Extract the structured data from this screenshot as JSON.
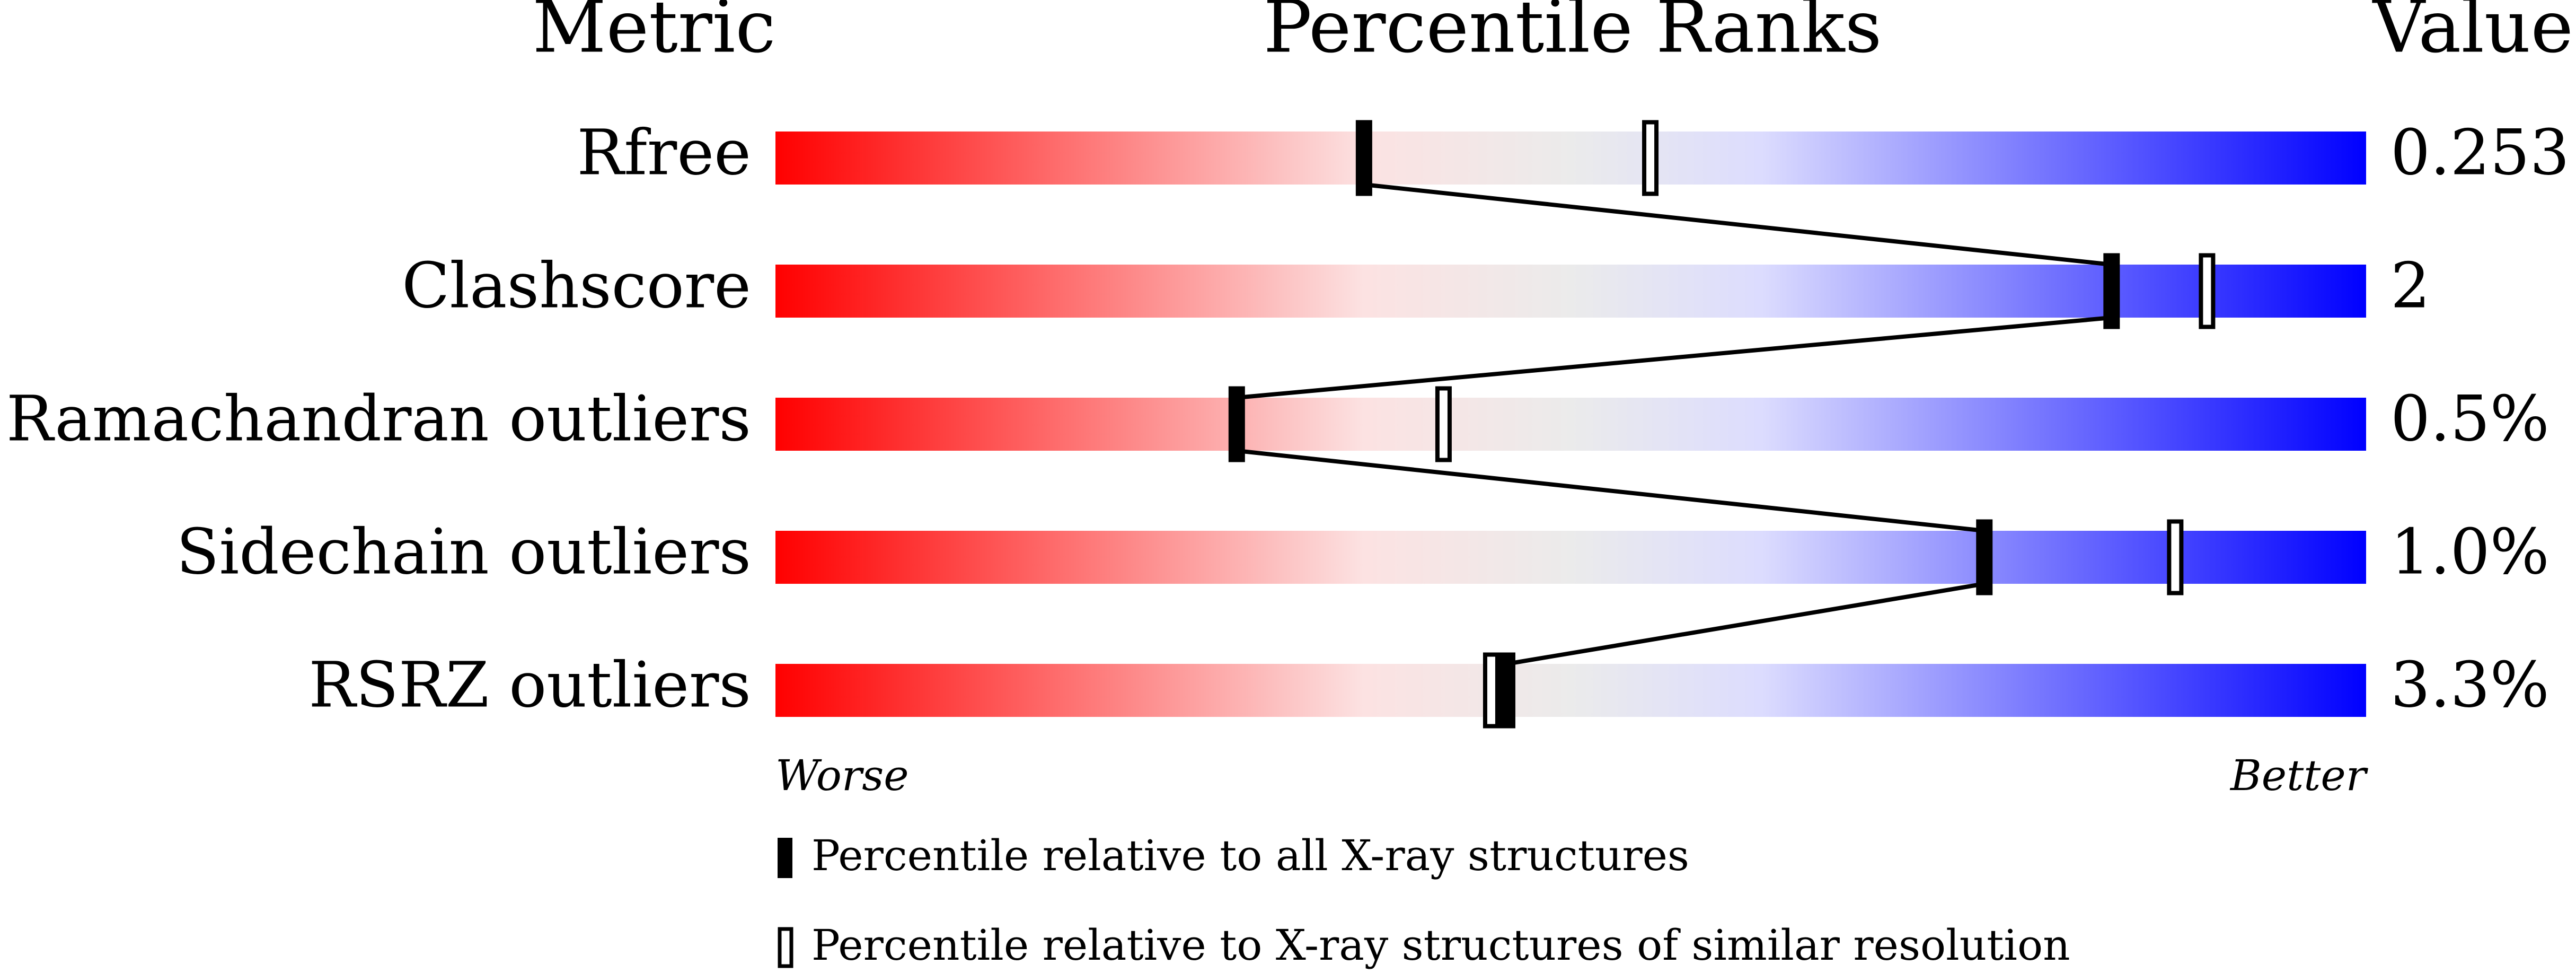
{
  "chart_data": {
    "type": "percentile-slider",
    "headers": {
      "metric": "Metric",
      "ranks": "Percentile Ranks",
      "value": "Value"
    },
    "categories": [
      "Rfree",
      "Clashscore",
      "Ramachandran outliers",
      "Sidechain outliers",
      "RSRZ outliers"
    ],
    "value_labels": [
      "0.253",
      "2",
      "0.5%",
      "1.0%",
      "3.3%"
    ],
    "series": [
      {
        "name": "Percentile relative to all X-ray structures",
        "color": "#000000",
        "values": [
          37,
          84,
          29,
          76,
          46
        ]
      },
      {
        "name": "Percentile relative to X-ray structures of similar resolution",
        "color": "#ffffff",
        "values": [
          55,
          90,
          42,
          88,
          45
        ]
      }
    ],
    "xlim": [
      0,
      100
    ],
    "axis_labels": {
      "left": "Worse",
      "right": "Better"
    }
  }
}
